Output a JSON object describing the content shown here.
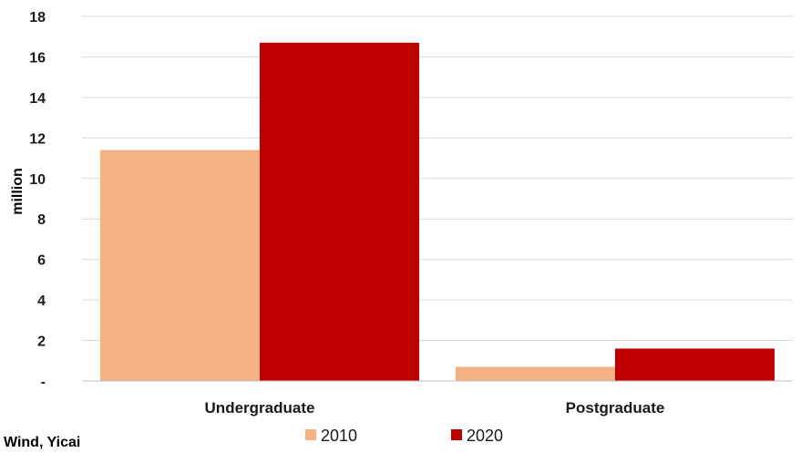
{
  "chart_data": {
    "type": "bar",
    "categories": [
      "Undergraduate",
      "Postgraduate"
    ],
    "series": [
      {
        "name": "2010",
        "values": [
          11.4,
          0.7
        ],
        "color": "#f4b183"
      },
      {
        "name": "2020",
        "values": [
          16.7,
          1.6
        ],
        "color": "#c00000"
      }
    ],
    "ylabel": "million",
    "ylim": [
      0,
      18
    ],
    "yticks": [
      0,
      2,
      4,
      6,
      8,
      10,
      12,
      14,
      16,
      18
    ],
    "ytick_labels": [
      "-",
      "2",
      "4",
      "6",
      "8",
      "10",
      "12",
      "14",
      "16",
      "18"
    ],
    "grid": true,
    "legend_position": "bottom"
  },
  "source": "Wind, Yicai"
}
